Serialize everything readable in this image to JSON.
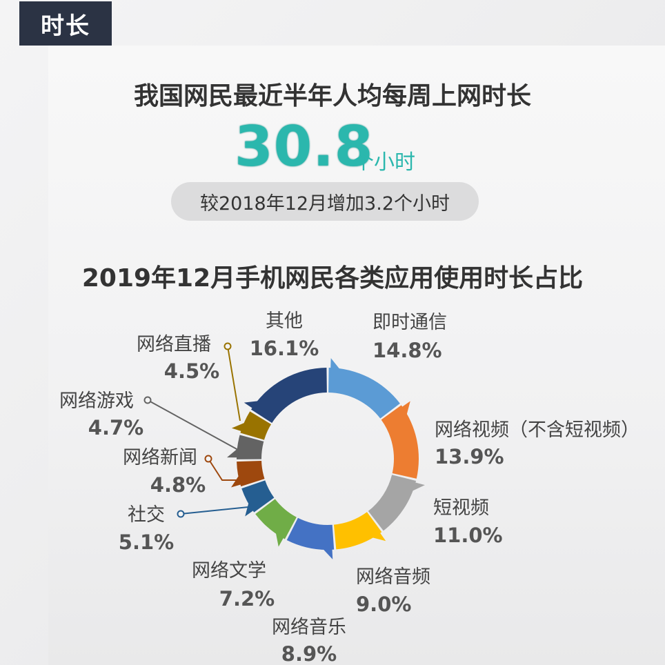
{
  "tag": "时长",
  "headline": "我国网民最近半年人均每周上网时长",
  "hours": {
    "value": "30.8",
    "unit": "个小时"
  },
  "change": "较2018年12月增加3.2个小时",
  "chart_data": {
    "type": "pie",
    "style": "donut",
    "title": "2019年12月手机网民各类应用使用时长占比",
    "categories": [
      "即时通信",
      "网络视频（不含短视频）",
      "短视频",
      "网络音频",
      "网络音乐",
      "网络文学",
      "社交",
      "网络新闻",
      "网络游戏",
      "网络直播",
      "其他"
    ],
    "values": [
      14.8,
      13.9,
      11.0,
      9.0,
      8.9,
      7.2,
      5.1,
      4.8,
      4.7,
      4.5,
      16.1
    ],
    "value_labels": [
      "14.8%",
      "13.9%",
      "11.0%",
      "9.0%",
      "8.9%",
      "7.2%",
      "5.1%",
      "4.8%",
      "4.7%",
      "4.5%",
      "16.1%"
    ],
    "colors": [
      "#5b9bd5",
      "#ed7d31",
      "#a5a5a5",
      "#ffc000",
      "#4472c4",
      "#70ad47",
      "#255e91",
      "#9e480e",
      "#636363",
      "#997300",
      "#264478"
    ]
  }
}
